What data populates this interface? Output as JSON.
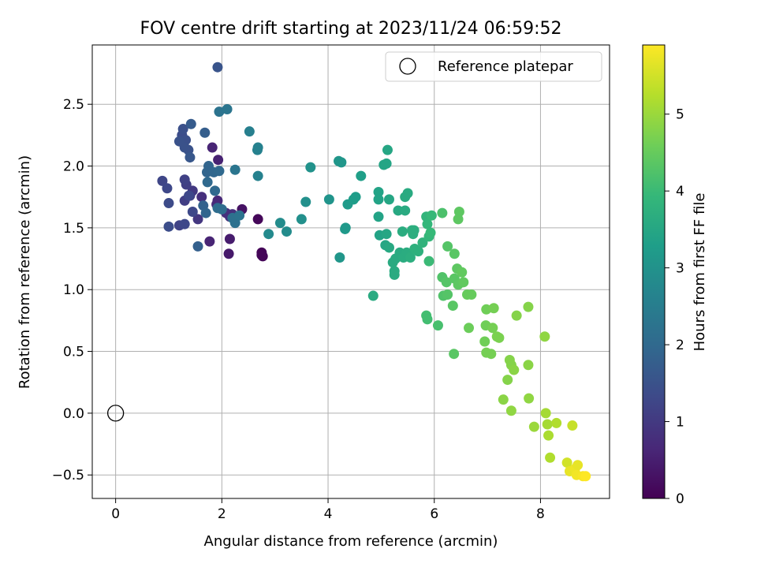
{
  "chart_data": {
    "type": "scatter",
    "title": "FOV centre drift starting at 2023/11/24 06:59:52",
    "xlabel": "Angular distance from reference (arcmin)",
    "ylabel": "Rotation from reference (arcmin)",
    "xlim": [
      -0.44,
      9.3
    ],
    "ylim": [
      -0.69,
      2.98
    ],
    "xticks": [
      0,
      2,
      4,
      6,
      8
    ],
    "yticks": [
      -0.5,
      0.0,
      0.5,
      1.0,
      1.5,
      2.0,
      2.5
    ],
    "xtick_labels": [
      "0",
      "2",
      "4",
      "6",
      "8"
    ],
    "ytick_labels": [
      "−0.5",
      "0.0",
      "0.5",
      "1.0",
      "1.5",
      "2.0",
      "2.5"
    ],
    "grid": true,
    "legend": {
      "position": "top-right",
      "entries": [
        {
          "label": "Reference platepar",
          "marker": "open-circle"
        }
      ]
    },
    "reference_point": {
      "x": 0,
      "y": 0
    },
    "colorbar": {
      "label": "Hours from first FF file",
      "min": 0,
      "max": 5.9,
      "ticks": [
        0,
        1,
        2,
        3,
        4,
        5
      ],
      "colormap": "viridis"
    },
    "series": [
      {
        "points": [
          [
            2.75,
            1.3,
            0.05
          ],
          [
            2.77,
            1.27,
            0.05
          ],
          [
            2.75,
            1.28,
            0.08
          ],
          [
            2.68,
            1.57,
            0.1
          ],
          [
            2.38,
            1.65,
            0.3
          ],
          [
            2.13,
            1.29,
            0.4
          ],
          [
            2.15,
            1.41,
            0.45
          ],
          [
            1.77,
            1.39,
            0.6
          ],
          [
            1.93,
            2.05,
            0.55
          ],
          [
            1.82,
            2.15,
            0.6
          ],
          [
            1.92,
            1.72,
            0.65
          ],
          [
            1.9,
            1.69,
            0.7
          ],
          [
            1.62,
            1.75,
            0.8
          ],
          [
            2.08,
            1.62,
            0.8
          ],
          [
            2.2,
            1.61,
            0.85
          ],
          [
            2.15,
            1.59,
            0.8
          ],
          [
            1.55,
            1.57,
            0.95
          ],
          [
            1.45,
            1.8,
            1.0
          ],
          [
            1.4,
            1.76,
            1.05
          ],
          [
            1.3,
            1.72,
            1.1
          ],
          [
            1.33,
            1.85,
            1.1
          ],
          [
            1.3,
            1.89,
            1.15
          ],
          [
            1.2,
            1.52,
            1.2
          ],
          [
            0.88,
            1.88,
            1.25
          ],
          [
            0.97,
            1.82,
            1.3
          ],
          [
            1.0,
            1.7,
            1.35
          ],
          [
            1.0,
            1.51,
            1.4
          ],
          [
            1.3,
            1.53,
            1.3
          ],
          [
            1.38,
            1.76,
            1.3
          ],
          [
            1.45,
            1.63,
            1.3
          ],
          [
            1.25,
            2.25,
            1.4
          ],
          [
            1.27,
            2.3,
            1.45
          ],
          [
            1.32,
            2.21,
            1.45
          ],
          [
            1.2,
            2.2,
            1.5
          ],
          [
            1.37,
            2.13,
            1.5
          ],
          [
            1.3,
            2.15,
            1.5
          ],
          [
            1.4,
            2.07,
            1.6
          ],
          [
            1.42,
            2.34,
            1.7
          ],
          [
            1.68,
            2.27,
            1.75
          ],
          [
            1.55,
            1.35,
            1.8
          ],
          [
            1.65,
            1.68,
            1.85
          ],
          [
            1.7,
            1.62,
            1.9
          ],
          [
            1.72,
            1.95,
            1.9
          ],
          [
            1.75,
            2.0,
            1.9
          ],
          [
            1.85,
            1.95,
            1.95
          ],
          [
            1.73,
            1.87,
            2.0
          ],
          [
            1.87,
            1.8,
            2.0
          ],
          [
            1.95,
            1.96,
            2.0
          ],
          [
            1.92,
            1.66,
            2.1
          ],
          [
            2.0,
            1.65,
            2.1
          ],
          [
            2.2,
            1.58,
            2.2
          ],
          [
            2.25,
            1.54,
            2.2
          ],
          [
            2.33,
            1.6,
            2.25
          ],
          [
            2.25,
            1.97,
            2.3
          ],
          [
            1.92,
            2.8,
            1.55
          ],
          [
            1.95,
            2.44,
            2.25
          ],
          [
            2.1,
            2.46,
            2.3
          ],
          [
            2.52,
            2.28,
            2.55
          ],
          [
            2.67,
            2.13,
            2.6
          ],
          [
            2.68,
            2.15,
            2.6
          ],
          [
            2.68,
            1.92,
            2.6
          ],
          [
            2.88,
            1.45,
            2.8
          ],
          [
            3.1,
            1.54,
            2.85
          ],
          [
            3.22,
            1.47,
            2.85
          ],
          [
            3.5,
            1.57,
            2.95
          ],
          [
            3.58,
            1.71,
            2.95
          ],
          [
            3.67,
            1.99,
            3.0
          ],
          [
            4.02,
            1.73,
            3.05
          ],
          [
            4.2,
            2.04,
            3.1
          ],
          [
            4.25,
            2.03,
            3.1
          ],
          [
            4.22,
            1.26,
            3.1
          ],
          [
            4.32,
            1.49,
            3.15
          ],
          [
            4.33,
            1.5,
            3.15
          ],
          [
            4.37,
            1.69,
            3.2
          ],
          [
            4.48,
            1.73,
            3.25
          ],
          [
            4.52,
            1.75,
            3.25
          ],
          [
            4.62,
            1.92,
            3.3
          ],
          [
            4.85,
            0.95,
            3.6
          ],
          [
            4.95,
            1.79,
            3.4
          ],
          [
            4.95,
            1.73,
            3.4
          ],
          [
            4.95,
            1.59,
            3.4
          ],
          [
            4.97,
            1.44,
            3.4
          ],
          [
            5.05,
            2.01,
            3.45
          ],
          [
            5.1,
            2.02,
            3.45
          ],
          [
            5.1,
            1.45,
            3.5
          ],
          [
            5.08,
            1.36,
            3.5
          ],
          [
            5.12,
            2.13,
            3.5
          ],
          [
            5.15,
            1.73,
            3.5
          ],
          [
            5.15,
            1.34,
            3.55
          ],
          [
            5.22,
            1.22,
            3.6
          ],
          [
            5.25,
            1.15,
            3.6
          ],
          [
            5.25,
            1.12,
            3.6
          ],
          [
            5.27,
            1.25,
            3.6
          ],
          [
            5.32,
            1.64,
            3.55
          ],
          [
            5.35,
            1.3,
            3.6
          ],
          [
            5.4,
            1.47,
            3.65
          ],
          [
            5.42,
            1.26,
            3.65
          ],
          [
            5.45,
            1.64,
            3.6
          ],
          [
            5.45,
            1.75,
            3.6
          ],
          [
            5.5,
            1.78,
            3.6
          ],
          [
            5.48,
            1.3,
            3.65
          ],
          [
            5.55,
            1.26,
            3.7
          ],
          [
            5.58,
            1.48,
            3.7
          ],
          [
            5.6,
            1.45,
            3.7
          ],
          [
            5.62,
            1.48,
            3.7
          ],
          [
            5.63,
            1.33,
            3.75
          ],
          [
            5.7,
            1.31,
            3.75
          ],
          [
            5.78,
            1.38,
            3.8
          ],
          [
            5.85,
            1.59,
            3.85
          ],
          [
            5.87,
            1.53,
            3.9
          ],
          [
            5.9,
            1.43,
            3.9
          ],
          [
            5.93,
            1.46,
            3.95
          ],
          [
            5.95,
            1.6,
            3.95
          ],
          [
            5.9,
            1.23,
            4.0
          ],
          [
            5.85,
            0.79,
            4.1
          ],
          [
            5.87,
            0.76,
            4.1
          ],
          [
            6.07,
            0.71,
            4.15
          ],
          [
            6.15,
            1.62,
            4.2
          ],
          [
            6.15,
            1.1,
            4.25
          ],
          [
            6.17,
            0.95,
            4.25
          ],
          [
            6.23,
            1.06,
            4.3
          ],
          [
            6.25,
            0.96,
            4.3
          ],
          [
            6.25,
            1.35,
            4.3
          ],
          [
            6.35,
            0.87,
            4.35
          ],
          [
            6.37,
            0.48,
            4.35
          ],
          [
            6.38,
            1.29,
            4.35
          ],
          [
            6.38,
            1.09,
            4.35
          ],
          [
            6.43,
            1.17,
            4.4
          ],
          [
            6.45,
            1.57,
            4.4
          ],
          [
            6.47,
            1.63,
            4.4
          ],
          [
            6.45,
            1.04,
            4.4
          ],
          [
            6.52,
            1.14,
            4.45
          ],
          [
            6.55,
            1.06,
            4.45
          ],
          [
            6.62,
            0.96,
            4.5
          ],
          [
            6.65,
            0.69,
            4.55
          ],
          [
            6.7,
            0.96,
            4.5
          ],
          [
            6.95,
            0.58,
            4.6
          ],
          [
            6.97,
            0.71,
            4.6
          ],
          [
            6.98,
            0.84,
            4.6
          ],
          [
            6.98,
            0.49,
            4.65
          ],
          [
            7.07,
            0.48,
            4.65
          ],
          [
            7.1,
            0.69,
            4.65
          ],
          [
            7.12,
            0.85,
            4.65
          ],
          [
            7.18,
            0.62,
            4.7
          ],
          [
            7.22,
            0.61,
            4.7
          ],
          [
            7.3,
            0.11,
            4.85
          ],
          [
            7.38,
            0.27,
            4.8
          ],
          [
            7.42,
            0.43,
            4.8
          ],
          [
            7.45,
            0.39,
            4.8
          ],
          [
            7.45,
            0.02,
            4.9
          ],
          [
            7.5,
            0.35,
            4.85
          ],
          [
            7.55,
            0.79,
            4.8
          ],
          [
            7.77,
            0.86,
            4.8
          ],
          [
            7.77,
            0.39,
            4.85
          ],
          [
            7.78,
            0.12,
            4.9
          ],
          [
            7.88,
            -0.11,
            5.0
          ],
          [
            8.08,
            0.62,
            4.9
          ],
          [
            8.1,
            0.0,
            5.1
          ],
          [
            8.13,
            -0.09,
            5.1
          ],
          [
            8.15,
            -0.18,
            5.15
          ],
          [
            8.18,
            -0.36,
            5.2
          ],
          [
            8.3,
            -0.08,
            5.2
          ],
          [
            8.5,
            -0.4,
            5.5
          ],
          [
            8.55,
            -0.47,
            5.7
          ],
          [
            8.6,
            -0.1,
            5.4
          ],
          [
            8.65,
            -0.45,
            5.75
          ],
          [
            8.7,
            -0.42,
            5.7
          ],
          [
            8.68,
            -0.5,
            5.8
          ],
          [
            8.8,
            -0.51,
            5.85
          ],
          [
            8.85,
            -0.51,
            5.9
          ]
        ]
      }
    ]
  }
}
